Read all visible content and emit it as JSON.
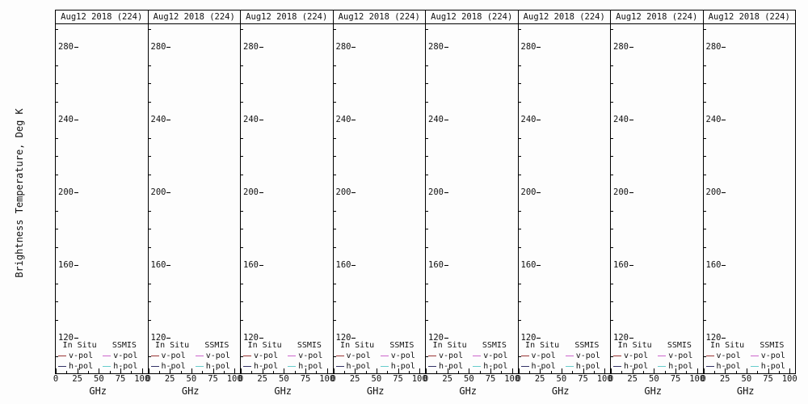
{
  "figure": {
    "y_axis_label": "Brightness Temperature, Deg K",
    "panel_count": 8
  },
  "panel": {
    "title": "Aug12 2018 (224)",
    "x_axis_label": "GHz",
    "y_ticks": [
      "280",
      "240",
      "200",
      "160",
      "120"
    ],
    "x_ticks": [
      "0",
      "25",
      "50",
      "75",
      "100"
    ],
    "legend": {
      "columns": [
        {
          "header": "In Situ",
          "entries": [
            {
              "label": "v-pol",
              "color": "#993333"
            },
            {
              "label": "h-pol",
              "color": "#333366"
            }
          ]
        },
        {
          "header": "SSMIS",
          "entries": [
            {
              "label": "v-pol",
              "color": "#cc66cc"
            },
            {
              "label": "h-pol",
              "color": "#66cccc"
            }
          ]
        }
      ]
    }
  },
  "chart_data": {
    "type": "line",
    "layout": "8 identical side-by-side panels",
    "title": "Aug12 2018 (224)",
    "xlabel": "GHz",
    "ylabel": "Brightness Temperature, Deg K",
    "xlim": [
      0,
      100
    ],
    "ylim": [
      100,
      293
    ],
    "x_ticks": [
      0,
      25,
      50,
      75,
      100
    ],
    "y_ticks": [
      120,
      160,
      200,
      240,
      280
    ],
    "grid": false,
    "legend_position": "bottom-left inside each panel",
    "series": [
      {
        "name": "In Situ v-pol",
        "color": "#993333",
        "x": [],
        "y": []
      },
      {
        "name": "In Situ h-pol",
        "color": "#333366",
        "x": [],
        "y": []
      },
      {
        "name": "SSMIS v-pol",
        "color": "#cc66cc",
        "x": [],
        "y": []
      },
      {
        "name": "SSMIS h-pol",
        "color": "#66cccc",
        "x": [],
        "y": []
      }
    ]
  }
}
